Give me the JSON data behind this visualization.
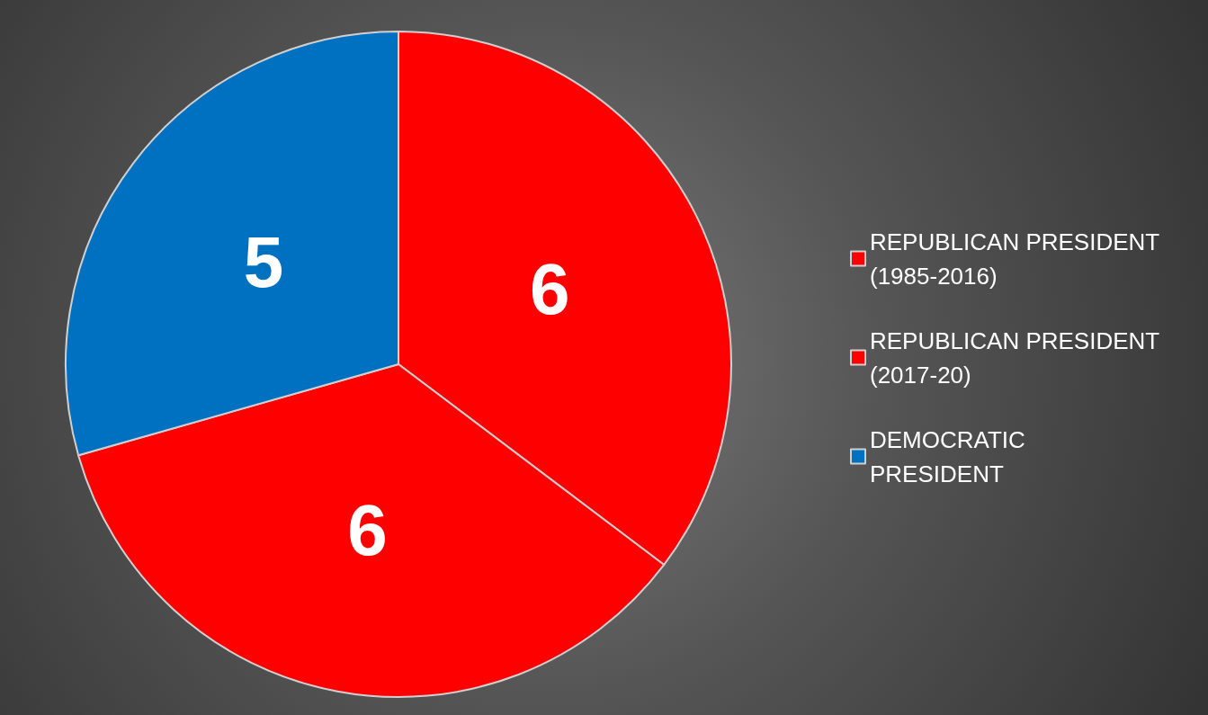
{
  "chart_data": {
    "type": "pie",
    "categories": [
      "REPUBLICAN PRESIDENT (1985-2016)",
      "REPUBLICAN PRESIDENT (2017-20)",
      "DEMOCRATIC PRESIDENT"
    ],
    "values": [
      6,
      6,
      5
    ],
    "colors": [
      "#ff0000",
      "#ff0000",
      "#0070c0"
    ],
    "data_labels": true,
    "legend": "right"
  }
}
